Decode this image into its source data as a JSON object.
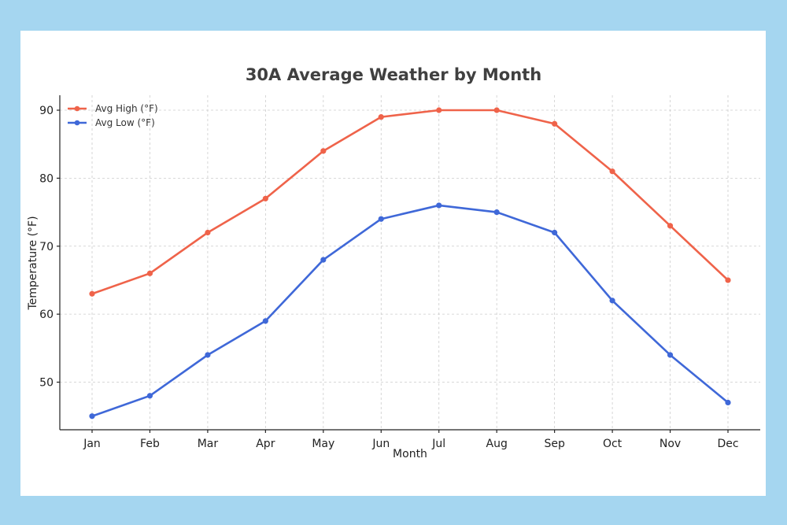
{
  "chart_data": {
    "type": "line",
    "title": "30A Average Weather by Month",
    "xlabel": "Month",
    "ylabel": "Temperature (°F)",
    "categories": [
      "Jan",
      "Feb",
      "Mar",
      "Apr",
      "May",
      "Jun",
      "Jul",
      "Aug",
      "Sep",
      "Oct",
      "Nov",
      "Dec"
    ],
    "ylim": [
      43,
      92.2
    ],
    "yticks": [
      50,
      60,
      70,
      80,
      90
    ],
    "grid": true,
    "legend_position": "top-left",
    "series": [
      {
        "name": "Avg High (°F)",
        "color": "#ef634a",
        "values": [
          63,
          66,
          72,
          77,
          84,
          89,
          90,
          90,
          88,
          81,
          73,
          65
        ]
      },
      {
        "name": "Avg Low (°F)",
        "color": "#3f68d8",
        "values": [
          45,
          48,
          54,
          59,
          68,
          74,
          76,
          75,
          72,
          62,
          54,
          47
        ]
      }
    ]
  }
}
